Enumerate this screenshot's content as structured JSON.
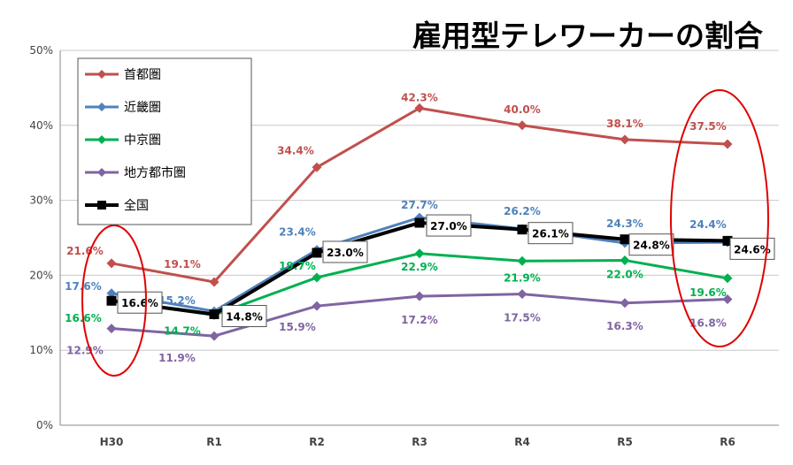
{
  "chart_data": {
    "type": "line",
    "title": "雇用型テレワーカーの割合",
    "categories": [
      "H30",
      "R1",
      "R2",
      "R3",
      "R4",
      "R5",
      "R6"
    ],
    "ylim": [
      0,
      50
    ],
    "yticks": [
      "0%",
      "10%",
      "20%",
      "30%",
      "40%",
      "50%"
    ],
    "grid": "horizontal",
    "legend": "top-left",
    "series": [
      {
        "name": "首都圏",
        "color": "#c0504d",
        "marker": "diamond",
        "values": [
          21.6,
          19.1,
          34.4,
          42.3,
          40.0,
          38.1,
          37.5
        ],
        "labels": [
          "21.6%",
          "19.1%",
          "34.4%",
          "42.3%",
          "40.0%",
          "38.1%",
          "37.5%"
        ]
      },
      {
        "name": "近畿圏",
        "color": "#4f81bd",
        "marker": "diamond",
        "values": [
          17.6,
          15.2,
          23.4,
          27.7,
          26.2,
          24.3,
          24.4
        ],
        "labels": [
          "17.6%",
          "15.2%",
          "23.4%",
          "27.7%",
          "26.2%",
          "24.3%",
          "24.4%"
        ]
      },
      {
        "name": "中京圏",
        "color": "#00b050",
        "marker": "diamond",
        "values": [
          16.6,
          14.7,
          19.7,
          22.9,
          21.9,
          22.0,
          19.6
        ],
        "labels": [
          "16.6%",
          "14.7%",
          "19.7%",
          "22.9%",
          "21.9%",
          "22.0%",
          "19.6%"
        ]
      },
      {
        "name": "地方都市圏",
        "color": "#8064a2",
        "marker": "diamond",
        "values": [
          12.9,
          11.9,
          15.9,
          17.2,
          17.5,
          16.3,
          16.8
        ],
        "labels": [
          "12.9%",
          "11.9%",
          "15.9%",
          "17.2%",
          "17.5%",
          "16.3%",
          "16.8%"
        ]
      },
      {
        "name": "全国",
        "color": "#000000",
        "marker": "square",
        "values": [
          16.6,
          14.8,
          23.0,
          27.0,
          26.1,
          24.8,
          24.6
        ],
        "labels": [
          "16.6%",
          "14.8%",
          "23.0%",
          "27.0%",
          "26.1%",
          "24.8%",
          "24.6%"
        ]
      }
    ],
    "annotations": [
      {
        "type": "ellipse",
        "color": "#e00000",
        "category": "H30"
      },
      {
        "type": "ellipse",
        "color": "#e00000",
        "category": "R6"
      }
    ]
  }
}
